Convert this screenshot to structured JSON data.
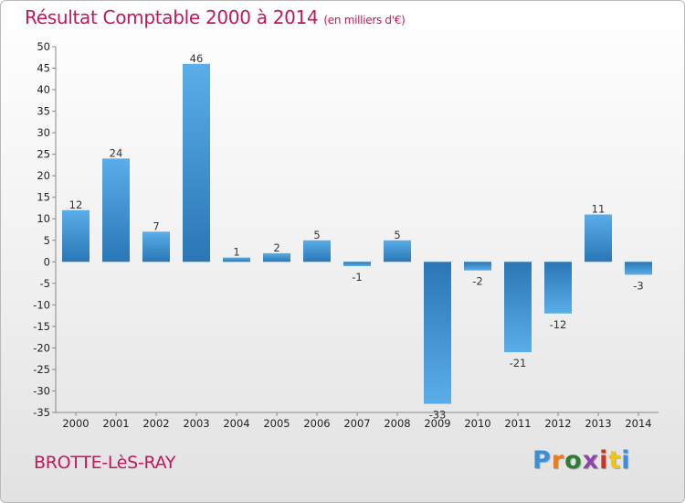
{
  "title": "Résultat Comptable 2000 à 2014",
  "subtitle": "(en milliers d'€)",
  "city": "BROTTE-LèS-RAY",
  "brand": {
    "letters": [
      "P",
      "r",
      "o",
      "x",
      "i",
      "t",
      "i"
    ],
    "colors": [
      "#3a8fd8",
      "#e67e22",
      "#2e7d32",
      "#8e44ad",
      "#c0392b",
      "#f1c40f",
      "#3a8fd8"
    ]
  },
  "colors": {
    "bar_light": "#5aaee8",
    "bar_dark": "#2a76b6"
  },
  "chart_data": {
    "type": "bar",
    "title": "Résultat Comptable 2000 à 2014",
    "subtitle": "(en milliers d'€)",
    "xlabel": "",
    "ylabel": "",
    "ylim": [
      -35,
      50
    ],
    "ytick_step": 5,
    "grid": false,
    "categories": [
      "2000",
      "2001",
      "2002",
      "2003",
      "2004",
      "2005",
      "2006",
      "2007",
      "2008",
      "2009",
      "2010",
      "2011",
      "2012",
      "2013",
      "2014"
    ],
    "values": [
      12,
      24,
      7,
      46,
      1,
      2,
      5,
      -1,
      5,
      -33,
      -2,
      -21,
      -12,
      11,
      -3
    ],
    "yticks": [
      "50",
      "45",
      "40",
      "35",
      "30",
      "25",
      "20",
      "15",
      "10",
      "5",
      "0",
      "-5",
      "-10",
      "-15",
      "-20",
      "-25",
      "-30",
      "-35"
    ],
    "value_labels": [
      "12",
      "24",
      "7",
      "46",
      "1",
      "2",
      "5",
      "-1",
      "5",
      "-33",
      "-2",
      "-21",
      "-12",
      "11",
      "-3"
    ]
  }
}
